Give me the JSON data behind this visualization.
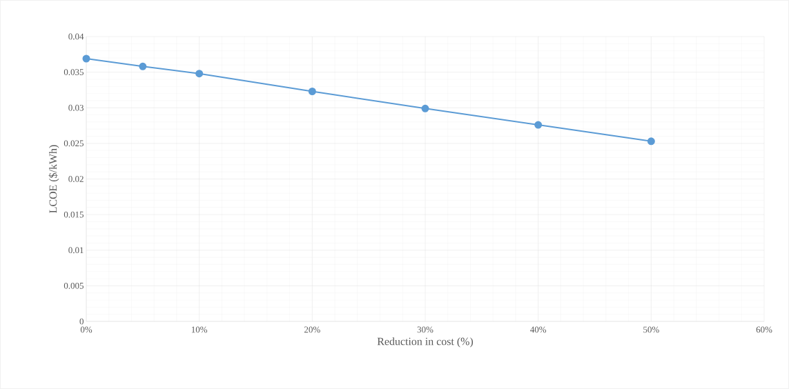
{
  "chart_data": {
    "type": "line",
    "xlabel": "Reduction in cost (%)",
    "ylabel": "LCOE ($/kWh)",
    "x": [
      0,
      5,
      10,
      20,
      30,
      40,
      50
    ],
    "series": [
      {
        "color": "#5b9bd5",
        "values": [
          0.0369,
          0.0358,
          0.0348,
          0.0323,
          0.0299,
          0.0276,
          0.0253
        ]
      }
    ],
    "xlim": [
      0,
      60
    ],
    "ylim": [
      0,
      0.04
    ],
    "xticks": [
      {
        "value": 0,
        "label": "0%"
      },
      {
        "value": 10,
        "label": "10%"
      },
      {
        "value": 20,
        "label": "20%"
      },
      {
        "value": 30,
        "label": "30%"
      },
      {
        "value": 40,
        "label": "40%"
      },
      {
        "value": 50,
        "label": "50%"
      },
      {
        "value": 60,
        "label": "60%"
      }
    ],
    "yticks": [
      0,
      0.005,
      0.01,
      0.015,
      0.02,
      0.025,
      0.03,
      0.035,
      0.04
    ],
    "grid": true,
    "marker": "circle",
    "line_style": "solid"
  }
}
